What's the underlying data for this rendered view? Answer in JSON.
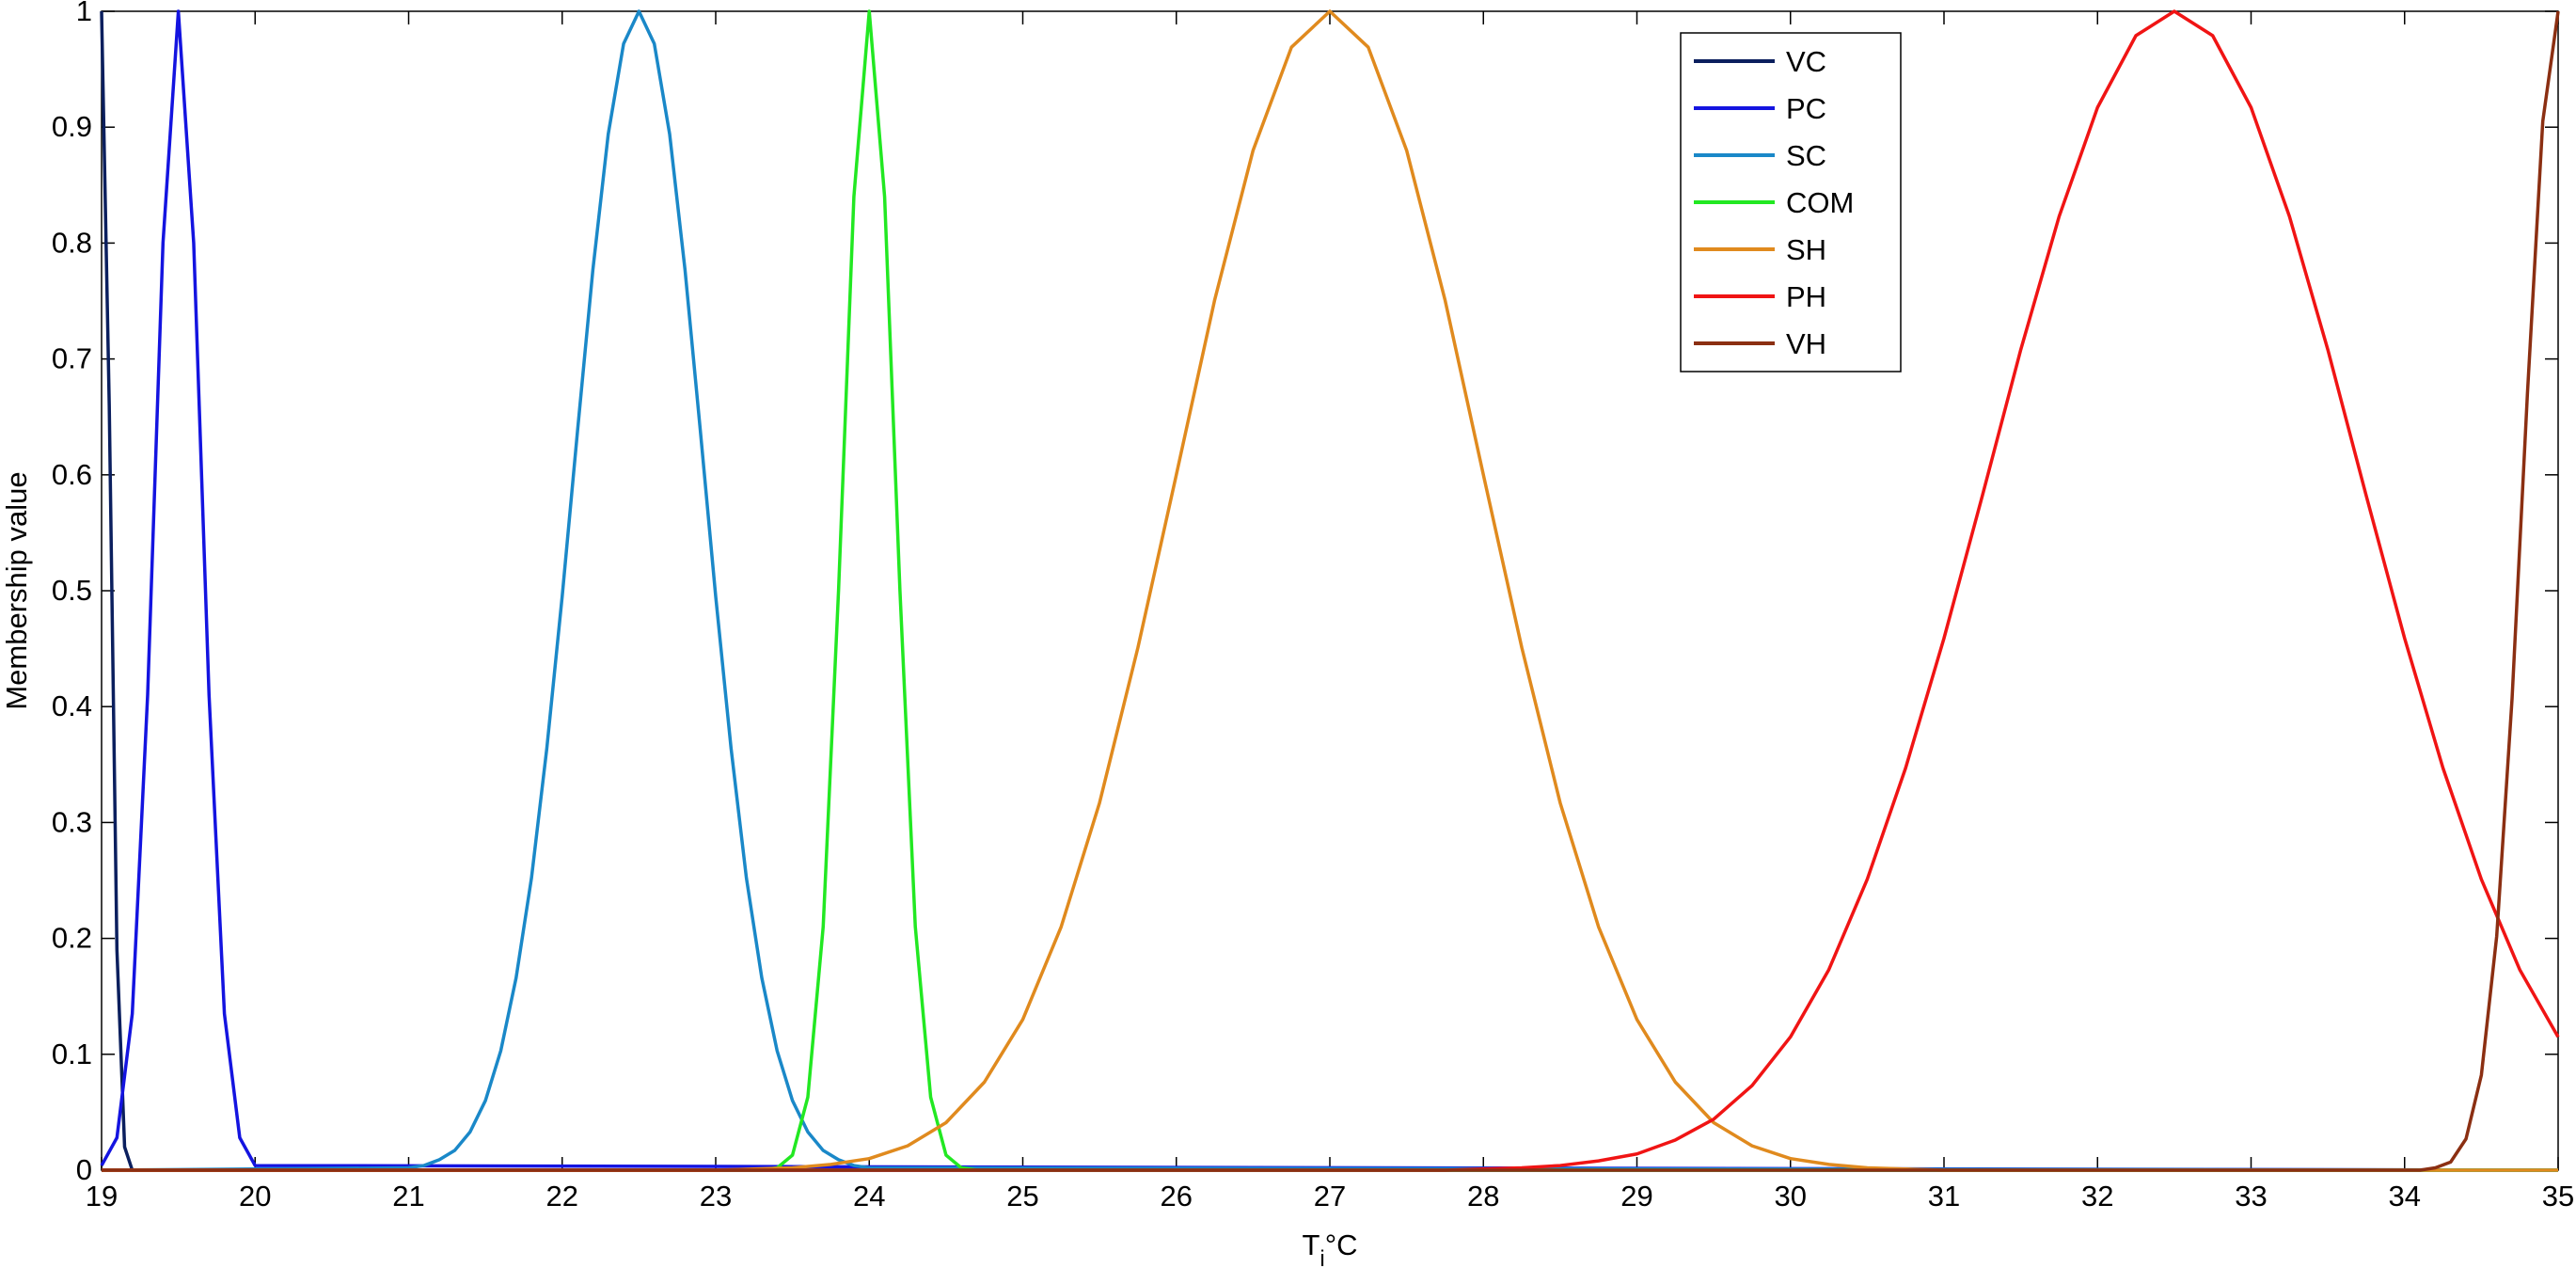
{
  "chart_data": {
    "type": "line",
    "xlabel": {
      "main": "T",
      "sub": "i",
      "suffix": "°C"
    },
    "ylabel": "Membership value",
    "xlim": [
      19,
      35
    ],
    "xticks": [
      19,
      20,
      21,
      22,
      23,
      24,
      25,
      26,
      27,
      28,
      29,
      30,
      31,
      32,
      33,
      34,
      35
    ],
    "ylim": [
      0,
      1
    ],
    "yticks": [
      0,
      0.1,
      0.2,
      0.3,
      0.4,
      0.5,
      0.6,
      0.7,
      0.8,
      0.9,
      1
    ],
    "grid": false,
    "legend": "upper-center-right",
    "series": [
      {
        "name": "VC",
        "color": "#0b1f5e",
        "x": [
          19,
          19.05,
          19.1,
          19.15,
          19.2,
          19.3,
          35
        ],
        "values": [
          1,
          0.66,
          0.19,
          0.02,
          0,
          0,
          0
        ]
      },
      {
        "name": "PC",
        "color": "#1414e0",
        "x": [
          19,
          19.1,
          19.2,
          19.3,
          19.4,
          19.5,
          19.6,
          19.7,
          19.8,
          19.9,
          20,
          35
        ],
        "values": [
          0.004,
          0.028,
          0.135,
          0.41,
          0.8,
          1,
          0.8,
          0.41,
          0.135,
          0.028,
          0.004,
          0
        ]
      },
      {
        "name": "SC",
        "color": "#1a88c8",
        "x": [
          19,
          21,
          21.1,
          21.2,
          21.3,
          21.4,
          21.5,
          21.6,
          21.7,
          21.8,
          21.9,
          22,
          22.1,
          22.2,
          22.3,
          22.4,
          22.5,
          22.6,
          22.7,
          22.8,
          22.9,
          23,
          23.1,
          23.2,
          23.3,
          23.4,
          23.5,
          23.6,
          23.7,
          23.8,
          23.9,
          24,
          35
        ],
        "values": [
          0,
          0.002,
          0.004,
          0.009,
          0.017,
          0.033,
          0.06,
          0.103,
          0.166,
          0.252,
          0.364,
          0.495,
          0.638,
          0.777,
          0.894,
          0.972,
          1,
          0.972,
          0.894,
          0.777,
          0.638,
          0.495,
          0.364,
          0.252,
          0.166,
          0.103,
          0.06,
          0.033,
          0.017,
          0.009,
          0.004,
          0.002,
          0
        ]
      },
      {
        "name": "COM",
        "color": "#22e822",
        "x": [
          19,
          23.3,
          23.4,
          23.5,
          23.6,
          23.7,
          23.8,
          23.9,
          24,
          24.1,
          24.2,
          24.3,
          24.4,
          24.5,
          24.6,
          24.7,
          35
        ],
        "values": [
          0,
          0,
          0.002,
          0.013,
          0.063,
          0.21,
          0.5,
          0.84,
          1,
          0.84,
          0.5,
          0.21,
          0.063,
          0.013,
          0.002,
          0,
          0
        ]
      },
      {
        "name": "SH",
        "color": "#e08a1e",
        "x": [
          19,
          23,
          23.25,
          23.5,
          23.75,
          24,
          24.25,
          24.5,
          24.75,
          25,
          25.25,
          25.5,
          25.75,
          26,
          26.25,
          26.5,
          26.75,
          27,
          27.25,
          27.5,
          27.75,
          28,
          28.25,
          28.5,
          28.75,
          29,
          29.25,
          29.5,
          29.75,
          30,
          30.25,
          30.5,
          30.75,
          31,
          35
        ],
        "values": [
          0,
          0,
          0.001,
          0.002,
          0.005,
          0.01,
          0.021,
          0.041,
          0.076,
          0.13,
          0.21,
          0.317,
          0.451,
          0.6,
          0.751,
          0.88,
          0.969,
          1,
          0.969,
          0.88,
          0.751,
          0.6,
          0.451,
          0.317,
          0.21,
          0.13,
          0.076,
          0.041,
          0.021,
          0.01,
          0.005,
          0.002,
          0.001,
          0,
          0
        ]
      },
      {
        "name": "PH",
        "color": "#f01414",
        "x": [
          19,
          27.5,
          27.75,
          28,
          28.25,
          28.5,
          28.75,
          29,
          29.25,
          29.5,
          29.75,
          30,
          30.25,
          30.5,
          30.75,
          31,
          31.25,
          31.5,
          31.75,
          32,
          32.25,
          32.5,
          32.75,
          33,
          33.25,
          33.5,
          33.75,
          34,
          34.25,
          34.5,
          34.75,
          35
        ],
        "values": [
          0,
          0,
          0,
          0.001,
          0.002,
          0.004,
          0.008,
          0.014,
          0.026,
          0.044,
          0.073,
          0.115,
          0.173,
          0.251,
          0.347,
          0.459,
          0.582,
          0.708,
          0.823,
          0.917,
          0.979,
          1,
          0.979,
          0.917,
          0.823,
          0.708,
          0.582,
          0.459,
          0.347,
          0.251,
          0.173,
          0.115
        ]
      },
      {
        "name": "VH",
        "color": "#8b2f12",
        "x": [
          19,
          34,
          34.1,
          34.2,
          34.3,
          34.4,
          34.5,
          34.6,
          34.7,
          34.8,
          34.9,
          35
        ],
        "values": [
          0,
          0,
          0,
          0.002,
          0.007,
          0.027,
          0.082,
          0.202,
          0.407,
          0.67,
          0.905,
          1
        ]
      }
    ]
  }
}
